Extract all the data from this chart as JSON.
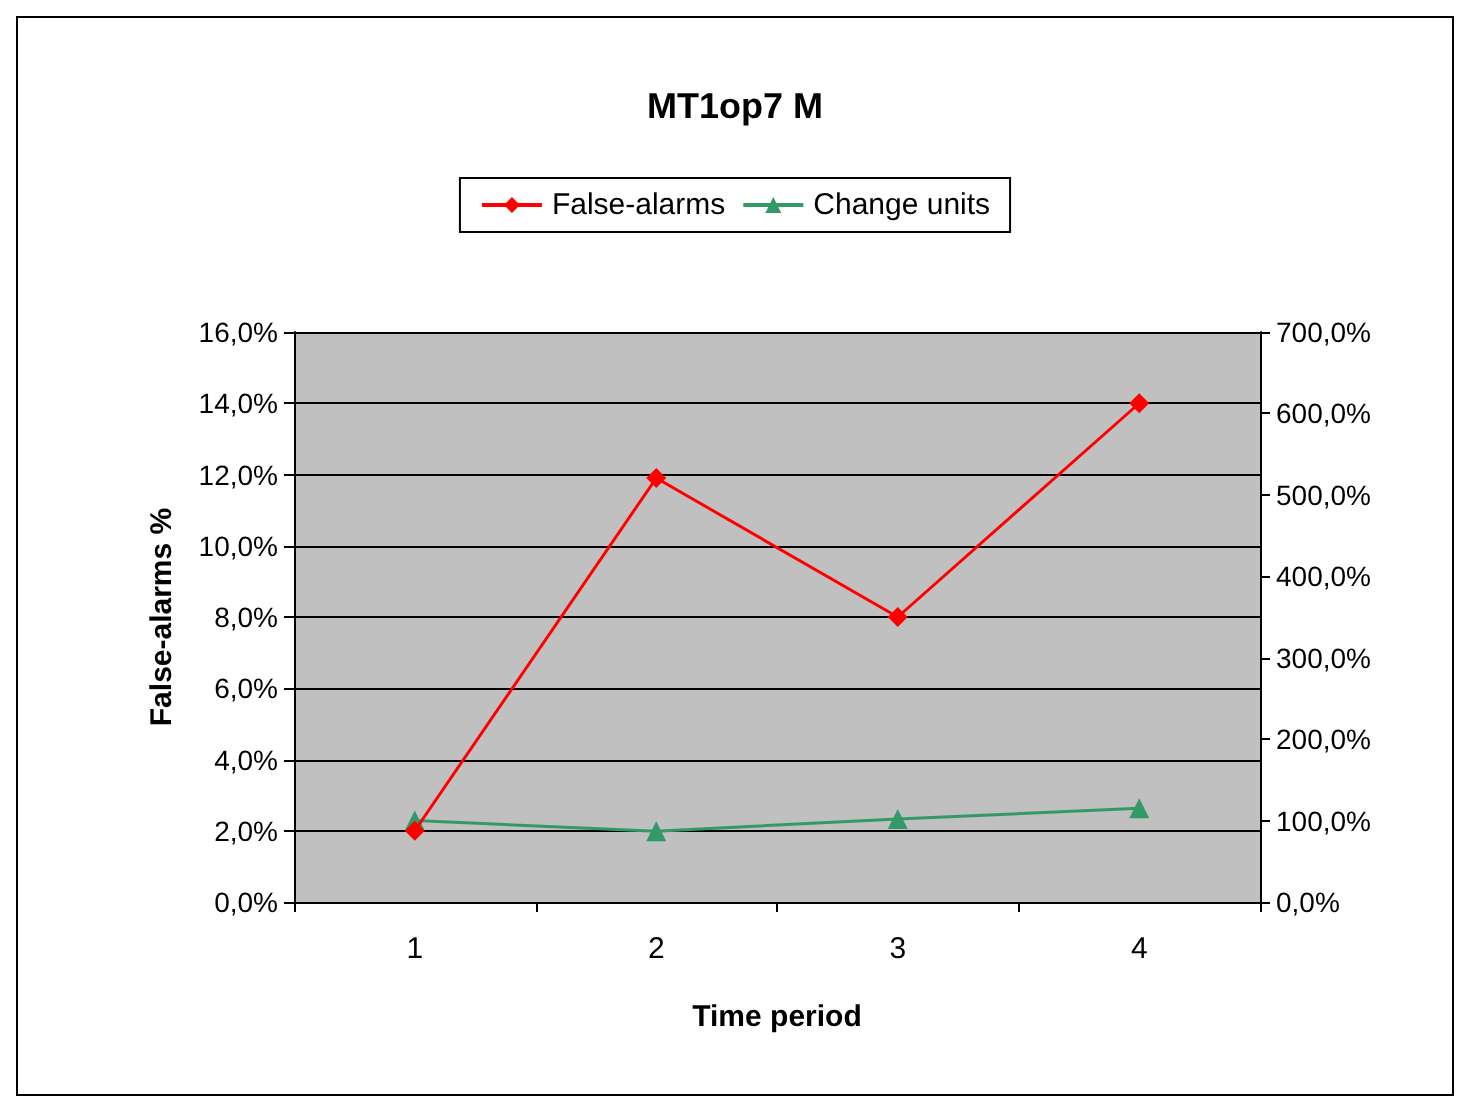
{
  "chart_data": {
    "type": "line",
    "title": "MT1op7 M",
    "xlabel": "Time period",
    "ylabel": "False-alarms %",
    "categories": [
      "1",
      "2",
      "3",
      "4"
    ],
    "series": [
      {
        "name": "False-alarms",
        "color": "#ff0000",
        "values": [
          2.0,
          11.9,
          8.0,
          14.0
        ],
        "marker": "diamond"
      },
      {
        "name": "Change units",
        "color": "#339966",
        "values": [
          100,
          87,
          102,
          115
        ],
        "axis": "y2",
        "marker": "triangle"
      }
    ],
    "ylim": [
      0,
      16
    ],
    "yticks": [
      {
        "value": 0,
        "label": "0,0%"
      },
      {
        "value": 2,
        "label": "2,0%"
      },
      {
        "value": 4,
        "label": "4,0%"
      },
      {
        "value": 6,
        "label": "6,0%"
      },
      {
        "value": 8,
        "label": "8,0%"
      },
      {
        "value": 10,
        "label": "10,0%"
      },
      {
        "value": 12,
        "label": "12,0%"
      },
      {
        "value": 14,
        "label": "14,0%"
      },
      {
        "value": 16,
        "label": "16,0%"
      }
    ],
    "y2lim": [
      0,
      700
    ],
    "y2ticks": [
      {
        "value": 0,
        "label": "0,0%"
      },
      {
        "value": 100,
        "label": "100,0%"
      },
      {
        "value": 200,
        "label": "200,0%"
      },
      {
        "value": 300,
        "label": "300,0%"
      },
      {
        "value": 400,
        "label": "400,0%"
      },
      {
        "value": 500,
        "label": "500,0%"
      },
      {
        "value": 600,
        "label": "600,0%"
      },
      {
        "value": 700,
        "label": "700,0%"
      }
    ],
    "grid": "y",
    "legend": "top",
    "line_style": "solid"
  }
}
